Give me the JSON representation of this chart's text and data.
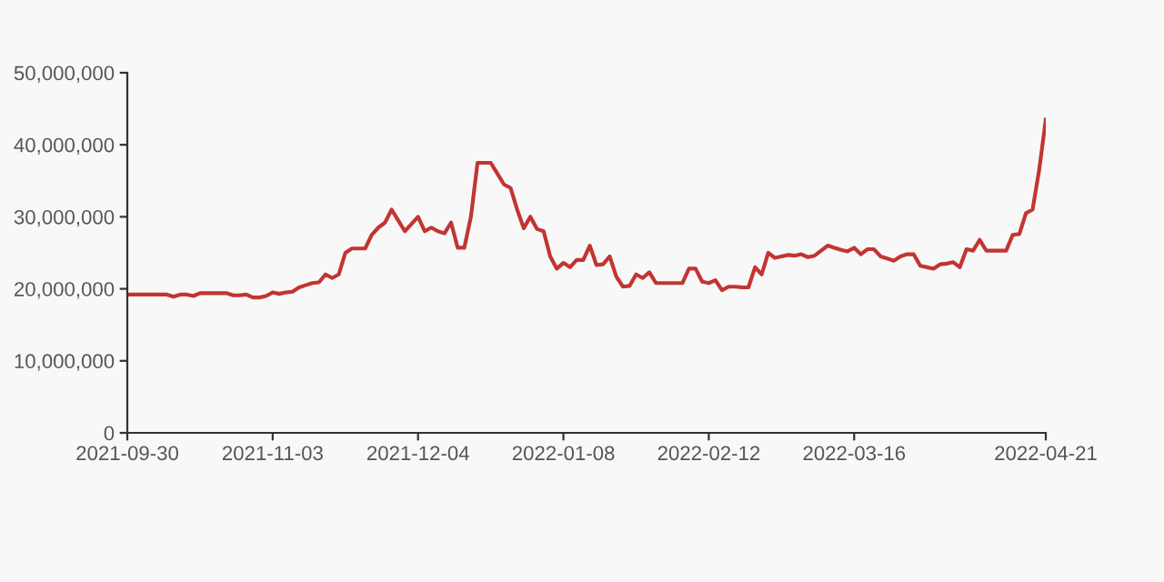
{
  "chart_data": {
    "type": "line",
    "categories": [
      "2021-09-30",
      null,
      null,
      null,
      null,
      null,
      null,
      null,
      null,
      null,
      null,
      null,
      null,
      null,
      null,
      null,
      null,
      null,
      null,
      null,
      null,
      null,
      "2021-11-03",
      null,
      null,
      null,
      null,
      null,
      null,
      null,
      null,
      null,
      null,
      null,
      null,
      null,
      null,
      null,
      null,
      null,
      null,
      null,
      null,
      null,
      "2021-12-04",
      null,
      null,
      null,
      null,
      null,
      null,
      null,
      null,
      null,
      null,
      null,
      null,
      null,
      null,
      null,
      null,
      null,
      null,
      null,
      null,
      null,
      "2022-01-08",
      null,
      null,
      null,
      null,
      null,
      null,
      null,
      null,
      null,
      null,
      null,
      null,
      null,
      null,
      null,
      null,
      null,
      null,
      null,
      null,
      null,
      "2022-02-12",
      null,
      null,
      null,
      null,
      null,
      null,
      null,
      null,
      null,
      null,
      null,
      null,
      null,
      null,
      null,
      null,
      null,
      null,
      null,
      null,
      null,
      "2022-03-16",
      null,
      null,
      null,
      null,
      null,
      null,
      null,
      null,
      null,
      null,
      null,
      null,
      null,
      null,
      null,
      null,
      null,
      null,
      null,
      null,
      null,
      null,
      null,
      null,
      null,
      null,
      null,
      null,
      "2022-04-21"
    ],
    "series": [
      {
        "color": "#c23531",
        "values": [
          19200000,
          19200000,
          19200000,
          19200000,
          19200000,
          19200000,
          19200000,
          18900000,
          19200000,
          19200000,
          19000000,
          19400000,
          19400000,
          19400000,
          19400000,
          19400000,
          19100000,
          19100000,
          19200000,
          18800000,
          18800000,
          19000000,
          19500000,
          19300000,
          19500000,
          19600000,
          20200000,
          20500000,
          20800000,
          20900000,
          22000000,
          21500000,
          22000000,
          25000000,
          25600000,
          25600000,
          25600000,
          27500000,
          28500000,
          29200000,
          31000000,
          29500000,
          28000000,
          29000000,
          30000000,
          28000000,
          28500000,
          28000000,
          27700000,
          29200000,
          25700000,
          25700000,
          30000000,
          37500000,
          37500000,
          37500000,
          36000000,
          34500000,
          34000000,
          31000000,
          28400000,
          30000000,
          28300000,
          28000000,
          24500000,
          22800000,
          23600000,
          23000000,
          24000000,
          24000000,
          26000000,
          23300000,
          23400000,
          24500000,
          21700000,
          20300000,
          20400000,
          22000000,
          21500000,
          22300000,
          20800000,
          20800000,
          20800000,
          20800000,
          20800000,
          22800000,
          22800000,
          21000000,
          20800000,
          21200000,
          19800000,
          20300000,
          20300000,
          20200000,
          20200000,
          23000000,
          22000000,
          25000000,
          24300000,
          24500000,
          24700000,
          24600000,
          24800000,
          24400000,
          24600000,
          25300000,
          26000000,
          25700000,
          25400000,
          25200000,
          25700000,
          24800000,
          25500000,
          25500000,
          24500000,
          24200000,
          23900000,
          24500000,
          24800000,
          24800000,
          23200000,
          23000000,
          22800000,
          23400000,
          23500000,
          23700000,
          23000000,
          25500000,
          25300000,
          26800000,
          25300000,
          25300000,
          25300000,
          25300000,
          27500000,
          27600000,
          30500000,
          31000000,
          36500000,
          43500000
        ]
      }
    ],
    "ylim": [
      0,
      50000000
    ],
    "yticks": [
      0,
      {
        "value": 10000000,
        "label": "10,000,000"
      },
      {
        "value": 20000000,
        "label": "20,000,000"
      },
      {
        "value": 30000000,
        "label": "30,000,000"
      },
      {
        "value": 40000000,
        "label": "40,000,000"
      },
      {
        "value": 50000000,
        "label": "50,000,000"
      }
    ],
    "line_style": "solid"
  }
}
